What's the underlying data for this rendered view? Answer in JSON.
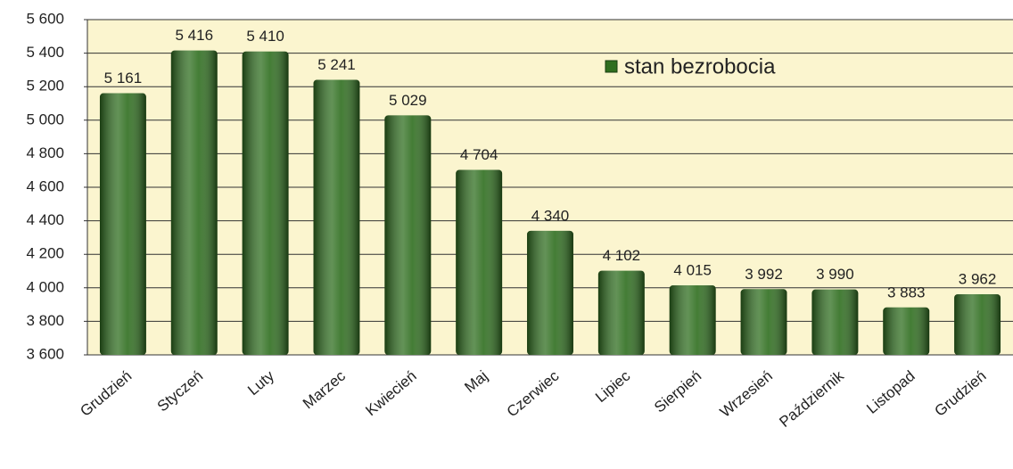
{
  "chart_data": {
    "type": "bar",
    "categories": [
      "Grudzień",
      "Styczeń",
      "Luty",
      "Marzec",
      "Kwiecień",
      "Maj",
      "Czerwiec",
      "Lipiec",
      "Sierpień",
      "Wrzesień",
      "Październik",
      "Listopad",
      "Grudzień"
    ],
    "series": [
      {
        "name": "stan bezrobocia",
        "color": "#2f6e1f",
        "values": [
          5161,
          5416,
          5410,
          5241,
          5029,
          4704,
          4340,
          4102,
          4015,
          3992,
          3990,
          3883,
          3962
        ],
        "value_labels": [
          "5 161",
          "5 416",
          "5 410",
          "5 241",
          "5 029",
          "4 704",
          "4 340",
          "4 102",
          "4 015",
          "3 992",
          "3 990",
          "3 883",
          "3 962"
        ]
      }
    ],
    "ylim": [
      3600,
      5600
    ],
    "yticks": [
      {
        "value": 3600,
        "label": "3 600"
      },
      {
        "value": 3800,
        "label": "3 800"
      },
      {
        "value": 4000,
        "label": "4 000"
      },
      {
        "value": 4200,
        "label": "4 200"
      },
      {
        "value": 4400,
        "label": "4 400"
      },
      {
        "value": 4600,
        "label": "4 600"
      },
      {
        "value": 4800,
        "label": "4 800"
      },
      {
        "value": 5000,
        "label": "5 000"
      },
      {
        "value": 5200,
        "label": "5 200"
      },
      {
        "value": 5400,
        "label": "5 400"
      },
      {
        "value": 5600,
        "label": "5 600"
      }
    ],
    "grid": true,
    "legend": "top-right"
  }
}
